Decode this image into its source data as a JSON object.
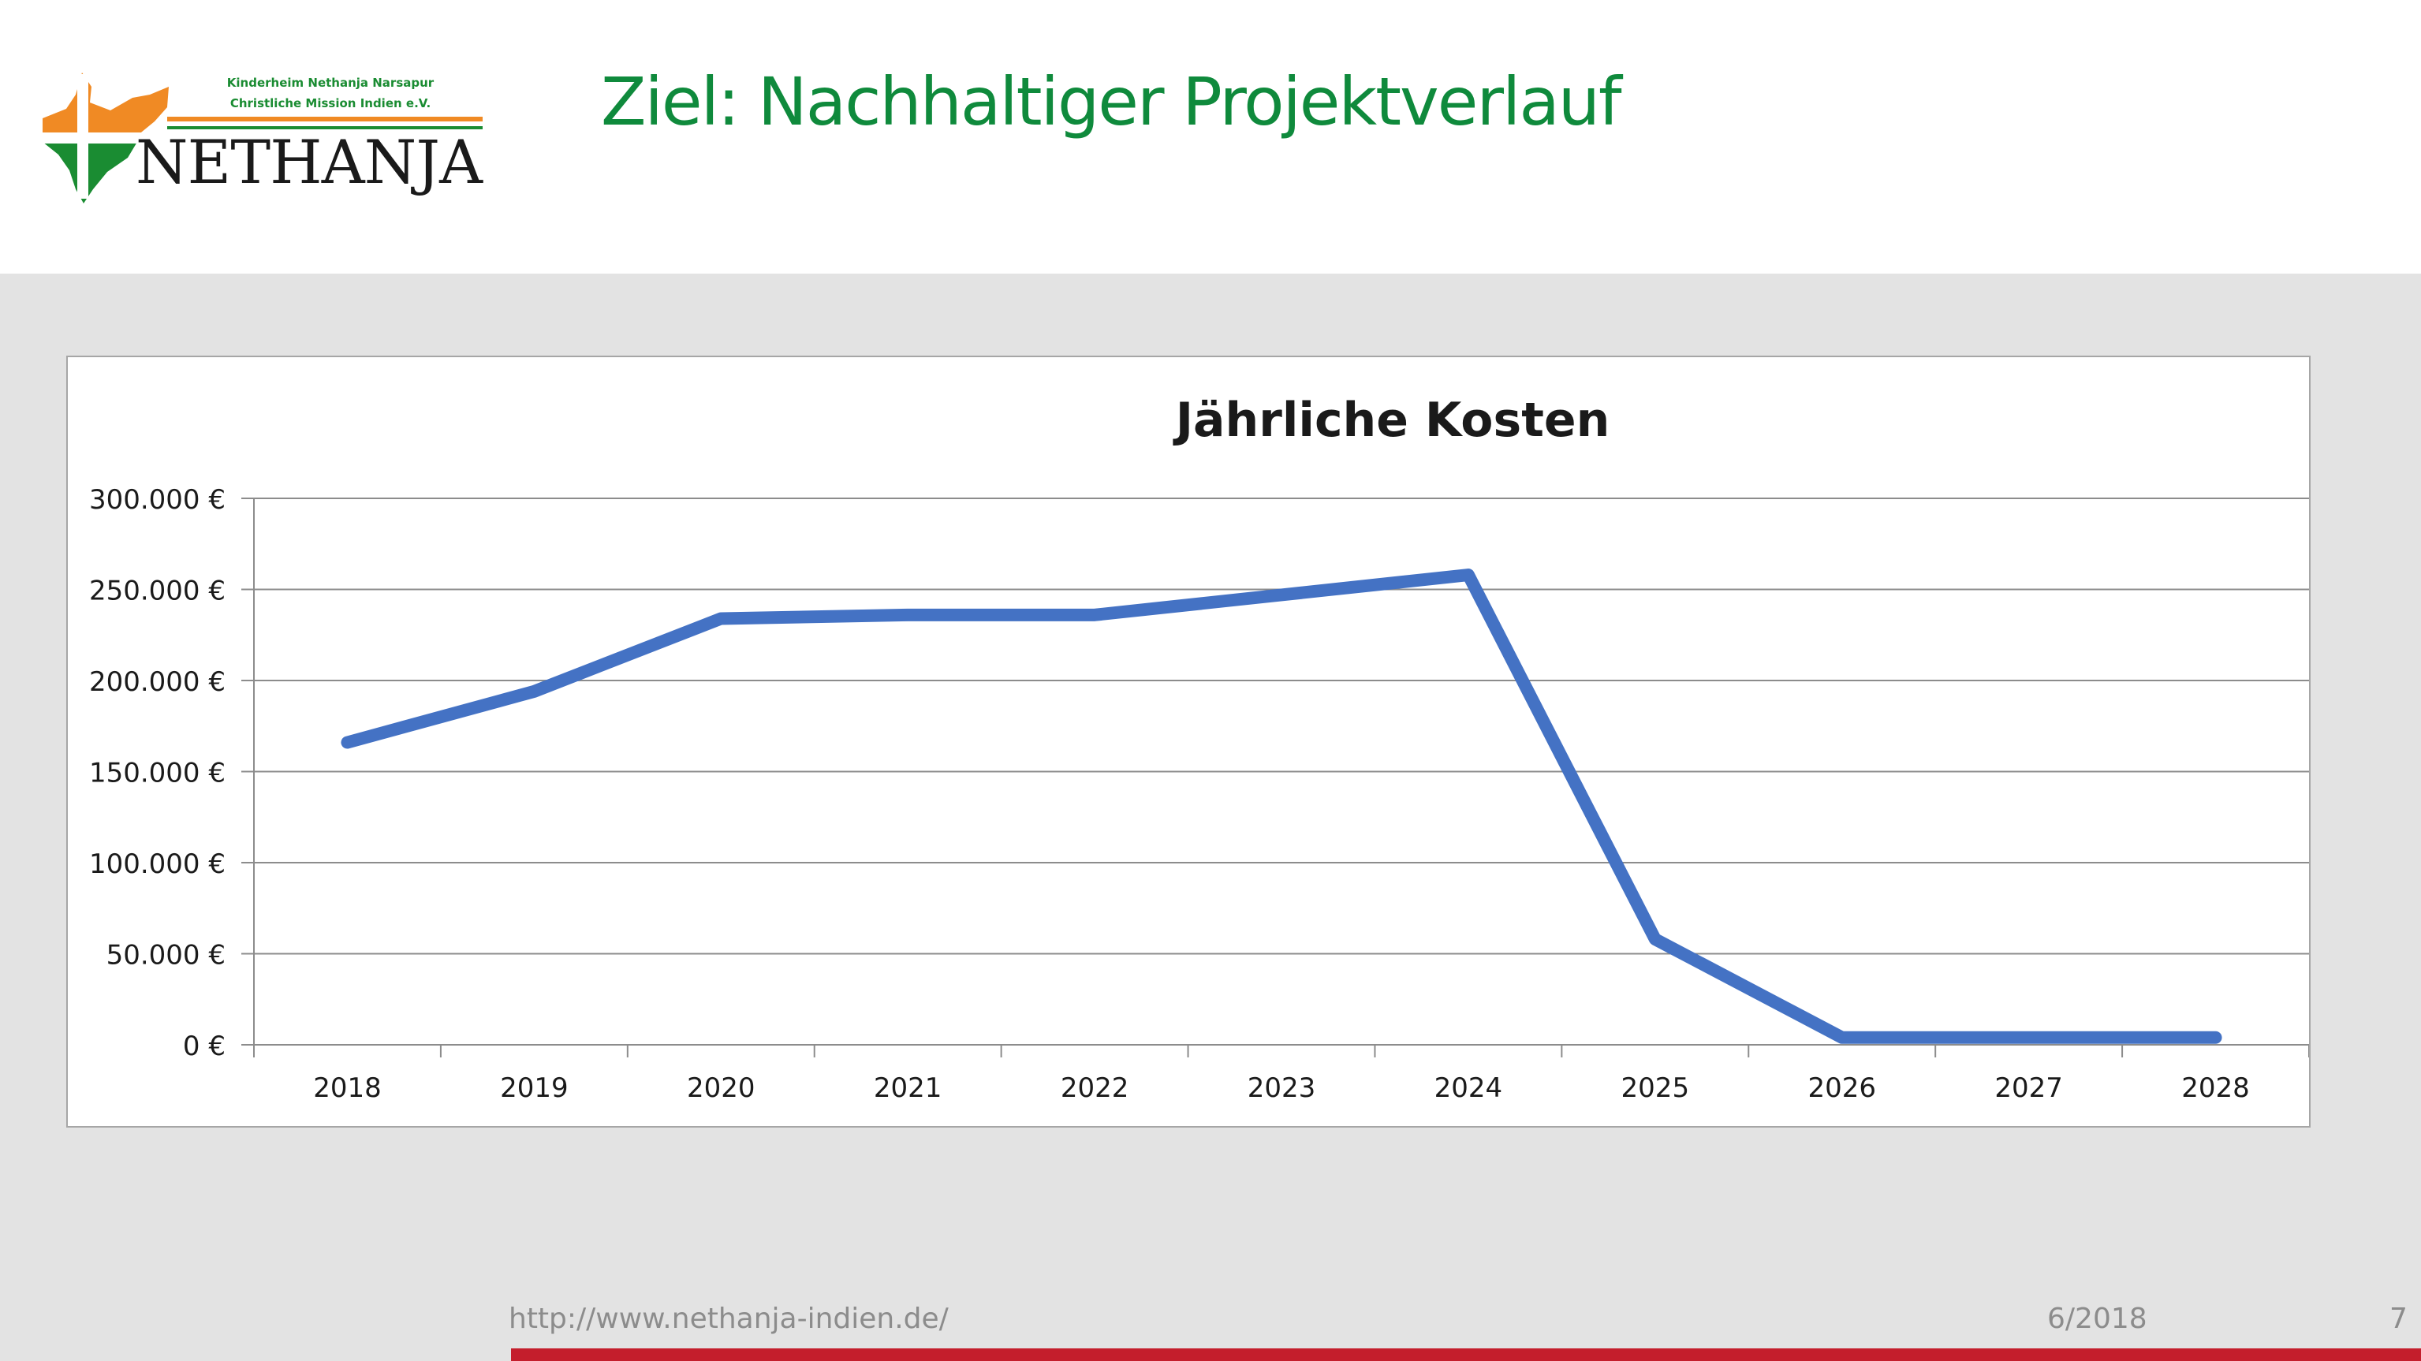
{
  "slide": {
    "title": "Ziel: Nachhaltiger Projektverlauf",
    "footer_url": "http://www.nethanja-indien.de/",
    "footer_date": "6/2018",
    "page_number": "7"
  },
  "logo": {
    "line1": "Kinderheim Nethanja Narsapur",
    "line2": "Christliche Mission Indien e.V.",
    "name": "NETHANJA"
  },
  "colors": {
    "title_green": "#0f8a3c",
    "line_blue": "#4472c4",
    "footer_red": "#c41e2c",
    "logo_orange": "#f08a24",
    "logo_green": "#1a8c32"
  },
  "chart_data": {
    "type": "line",
    "title": "Jährliche Kosten",
    "xlabel": "",
    "ylabel": "",
    "categories": [
      "2018",
      "2019",
      "2020",
      "2021",
      "2022",
      "2023",
      "2024",
      "2025",
      "2026",
      "2027",
      "2028"
    ],
    "series": [
      {
        "values": [
          166000,
          194000,
          234000,
          236000,
          236000,
          247000,
          258000,
          58000,
          4000,
          4000,
          4000
        ]
      }
    ],
    "ylim": [
      0,
      300000
    ],
    "yticks": [
      0,
      50000,
      100000,
      150000,
      200000,
      250000,
      300000
    ],
    "ytick_labels": [
      "0 €",
      "50.000 €",
      "100.000 €",
      "150.000 €",
      "200.000 €",
      "250.000 €",
      "300.000 €"
    ],
    "grid": true,
    "legend": "none"
  }
}
